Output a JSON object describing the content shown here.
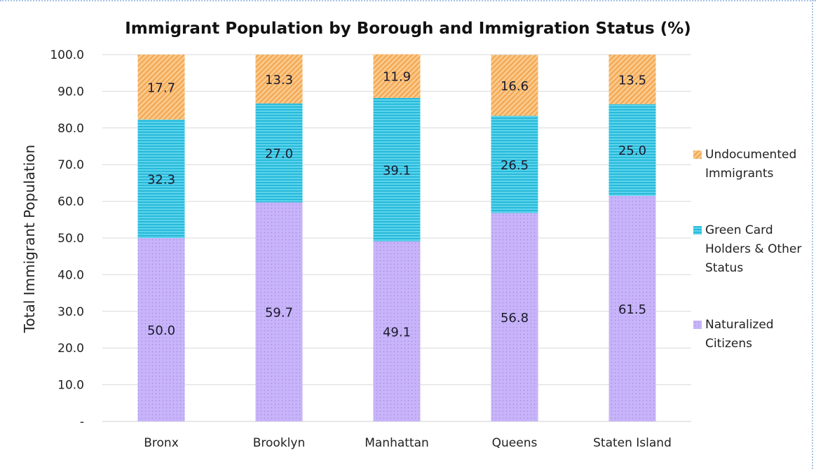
{
  "chart_data": {
    "type": "bar",
    "stacked": true,
    "title": "Immigrant Population by Borough and Immigration Status (%)",
    "ylabel": "Total Immigrant Population",
    "xlabel": "",
    "ylim": [
      0,
      100
    ],
    "y_ticks": [
      "-",
      "10.0",
      "20.0",
      "30.0",
      "40.0",
      "50.0",
      "60.0",
      "70.0",
      "80.0",
      "90.0",
      "100.0"
    ],
    "grid": true,
    "legend_position": "right",
    "categories": [
      "Bronx",
      "Brooklyn",
      "Manhattan",
      "Queens",
      "Staten Island"
    ],
    "series": [
      {
        "name": "Naturalized Citizens",
        "values": [
          50.0,
          59.7,
          49.1,
          56.8,
          61.5
        ],
        "labels": [
          "50.0",
          "59.7",
          "49.1",
          "56.8",
          "61.5"
        ],
        "color": "#c8b4fa",
        "pattern": "dots"
      },
      {
        "name": "Green Card Holders & Other Status",
        "values": [
          32.3,
          27.0,
          39.1,
          26.5,
          25.0
        ],
        "labels": [
          "32.3",
          "27.0",
          "39.1",
          "26.5",
          "25.0"
        ],
        "color": "#38c8e4",
        "pattern": "horizontal-lines"
      },
      {
        "name": "Undocumented Immigrants",
        "values": [
          17.7,
          13.3,
          11.9,
          16.6,
          13.5
        ],
        "labels": [
          "17.7",
          "13.3",
          "11.9",
          "16.6",
          "13.5"
        ],
        "color": "#f8b76c",
        "pattern": "diagonal-hatch"
      }
    ]
  },
  "legend": {
    "items": [
      {
        "label_lines": [
          "Undocumented",
          "Immigrants"
        ],
        "color": "#f8b76c",
        "pattern": "diagonal-hatch"
      },
      {
        "label_lines": [
          "Green Card",
          "Holders & Other",
          "Status"
        ],
        "color": "#38c8e4",
        "pattern": "horizontal-lines"
      },
      {
        "label_lines": [
          "Naturalized",
          "Citizens"
        ],
        "color": "#c8b4fa",
        "pattern": "dots"
      }
    ]
  }
}
